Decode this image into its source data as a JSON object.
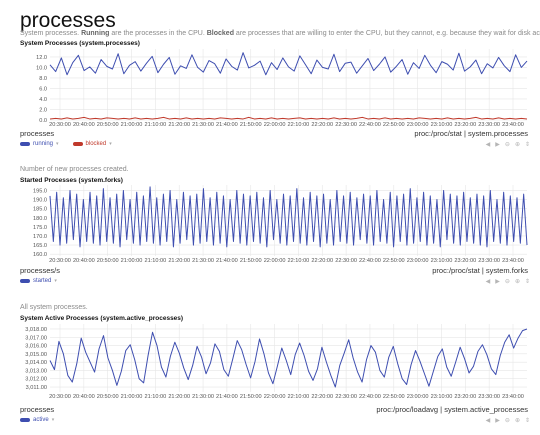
{
  "page": {
    "title": "processes"
  },
  "charts": [
    {
      "id": "processes",
      "description_parts": [
        {
          "text": "System processes. ",
          "bold": false
        },
        {
          "text": "Running",
          "bold": true
        },
        {
          "text": " are the processes in the CPU. ",
          "bold": false
        },
        {
          "text": "Blocked",
          "bold": true
        },
        {
          "text": " are processes that are willing to enter the CPU, but they cannot, e.g. because they wait for disk activity.",
          "bold": false
        }
      ],
      "title": "System Processes (system.processes)",
      "units": "processes",
      "context": "proc:/proc/stat | system.processes",
      "legend": [
        {
          "name": "running",
          "color": "#3e4eb0"
        },
        {
          "name": "blocked",
          "color": "#c0392b"
        }
      ]
    },
    {
      "id": "forks",
      "description_parts": [
        {
          "text": "Number of new processes created.",
          "bold": false
        }
      ],
      "title": "Started Processes (system.forks)",
      "units": "processes/s",
      "context": "proc:/proc/stat | system.forks",
      "legend": [
        {
          "name": "started",
          "color": "#3e4eb0"
        }
      ]
    },
    {
      "id": "active",
      "description_parts": [
        {
          "text": "All system processes.",
          "bold": false
        }
      ],
      "title": "System Active Processes (system.active_processes)",
      "units": "processes",
      "context": "proc:/proc/loadavg | system.active_processes",
      "legend": [
        {
          "name": "active",
          "color": "#3e4eb0"
        }
      ]
    }
  ],
  "controls": [
    "◀",
    "▶",
    "⊖",
    "⊕",
    "⇕"
  ],
  "chart_data": [
    {
      "type": "line",
      "title": "System Processes (system.processes)",
      "ylabel": "processes",
      "ylim": [
        0,
        13.5
      ],
      "y_ticks": [
        "12.0",
        "10.0",
        "8.0",
        "6.0",
        "4.0",
        "2.0",
        "0.0"
      ],
      "x_ticks": [
        "20:30:00",
        "20:40:00",
        "20:50:00",
        "21:00:00",
        "21:10:00",
        "21:20:00",
        "21:30:00",
        "21:40:00",
        "21:50:00",
        "22:00:00",
        "22:10:00",
        "22:20:00",
        "22:30:00",
        "22:40:00",
        "22:50:00",
        "23:00:00",
        "23:10:00",
        "23:20:00",
        "23:30:00",
        "23:40:00"
      ],
      "series": [
        {
          "name": "running",
          "values": [
            10.5,
            9.2,
            11.8,
            8.6,
            10.9,
            12.3,
            9.4,
            10.1,
            8.9,
            11.5,
            10.2,
            9.7,
            12.6,
            8.8,
            10.4,
            11.1,
            9.3,
            10.8,
            12.1,
            9.0,
            10.6,
            11.9,
            8.7,
            10.3,
            9.8,
            12.4,
            10.0,
            9.1,
            11.3,
            10.7,
            8.9,
            11.6,
            10.2,
            9.5,
            12.8,
            9.9,
            10.4,
            11.2,
            8.6,
            10.9,
            9.6,
            11.8,
            10.1,
            9.3,
            12.2,
            10.5,
            8.8,
            11.4,
            10.0,
            9.7,
            12.5,
            9.2,
            10.8,
            11.0,
            8.9,
            10.3,
            11.7,
            9.4,
            10.6,
            12.0,
            9.1,
            10.2,
            11.5,
            8.7,
            10.9,
            9.8,
            12.3,
            10.4,
            9.0,
            11.1,
            10.6,
            9.5,
            12.7,
            9.3,
            10.1,
            11.4,
            8.8,
            10.7,
            9.9,
            11.9,
            10.3,
            9.2,
            12.4,
            10.0,
            11.2
          ],
          "color": "#3e4eb0"
        },
        {
          "name": "blocked",
          "values": [
            0.2,
            0.3,
            0.2,
            0.4,
            0.2,
            0.3,
            0.5,
            0.2,
            0.3,
            0.2,
            0.4,
            0.3,
            0.2,
            0.3,
            0.2,
            0.4,
            0.2,
            0.3,
            0.2,
            0.3,
            0.5,
            0.2,
            0.3,
            0.2,
            0.4,
            0.2,
            0.3,
            0.2,
            0.3,
            0.2,
            0.4,
            0.3,
            0.2,
            0.3,
            0.2,
            0.5,
            0.2,
            0.3,
            0.2,
            0.4,
            0.2,
            0.3,
            0.2,
            0.3,
            0.4,
            0.2,
            0.3,
            0.2,
            0.3,
            0.2,
            0.4,
            0.2,
            0.3,
            0.2,
            0.3,
            0.5,
            0.2,
            0.3,
            0.2,
            0.4,
            0.2,
            0.3,
            0.2,
            0.3,
            0.2,
            0.4,
            0.3,
            0.2,
            0.3,
            0.2,
            0.4,
            0.2,
            0.3,
            0.2,
            0.3,
            0.5,
            0.2,
            0.3,
            0.2,
            0.4,
            0.2,
            0.3,
            0.2,
            0.3,
            0.2
          ],
          "color": "#c0392b"
        }
      ]
    },
    {
      "type": "line",
      "title": "Started Processes (system.forks)",
      "ylabel": "processes/s",
      "ylim": [
        159,
        198
      ],
      "y_ticks": [
        "195.0",
        "190.0",
        "185.0",
        "180.0",
        "175.0",
        "170.0",
        "165.0",
        "160.0"
      ],
      "x_ticks": [
        "20:30:00",
        "20:40:00",
        "20:50:00",
        "21:00:00",
        "21:10:00",
        "21:20:00",
        "21:30:00",
        "21:40:00",
        "21:50:00",
        "22:00:00",
        "22:10:00",
        "22:20:00",
        "22:30:00",
        "22:40:00",
        "22:50:00",
        "23:00:00",
        "23:10:00",
        "23:20:00",
        "23:30:00",
        "23:40:00"
      ],
      "series": [
        {
          "name": "started",
          "values": [
            192,
            167,
            194,
            165,
            191,
            166,
            195,
            168,
            193,
            164,
            190,
            167,
            194,
            166,
            192,
            165,
            196,
            167,
            191,
            166,
            193,
            164,
            195,
            168,
            190,
            166,
            194,
            165,
            192,
            167,
            197,
            166,
            191,
            165,
            193,
            167,
            195,
            164,
            190,
            166,
            194,
            168,
            192,
            165,
            193,
            166,
            196,
            167,
            191,
            165,
            194,
            166,
            192,
            164,
            190,
            167,
            195,
            166,
            193,
            165,
            192,
            167,
            194,
            166,
            191,
            164,
            195,
            168,
            190,
            166,
            193,
            165,
            192,
            167,
            196,
            166,
            191,
            165,
            194,
            167,
            192,
            164,
            193,
            166,
            190,
            165,
            195,
            167,
            192,
            166,
            194,
            165,
            191,
            168,
            193,
            166,
            192,
            165,
            195,
            167,
            190,
            166,
            194,
            164,
            192,
            167,
            193,
            165,
            196,
            166,
            191,
            167,
            194,
            165,
            192,
            166,
            190,
            164,
            195,
            168,
            193,
            166,
            192,
            165,
            194,
            167,
            191,
            166,
            193,
            165,
            192,
            164,
            195,
            167,
            190,
            166,
            194,
            165,
            192,
            167,
            191,
            166,
            193,
            165
          ],
          "color": "#3e4eb0"
        }
      ]
    },
    {
      "type": "line",
      "title": "System Active Processes (system.active_processes)",
      "ylabel": "processes",
      "ylim": [
        3010.4,
        3018.6
      ],
      "y_ticks": [
        "3,018.00",
        "3,017.00",
        "3,016.00",
        "3,015.00",
        "3,014.00",
        "3,013.00",
        "3,012.00",
        "3,011.00"
      ],
      "x_ticks": [
        "20:30:00",
        "20:40:00",
        "20:50:00",
        "21:00:00",
        "21:10:00",
        "21:20:00",
        "21:30:00",
        "21:40:00",
        "21:50:00",
        "22:00:00",
        "22:10:00",
        "22:20:00",
        "22:30:00",
        "22:40:00",
        "22:50:00",
        "23:00:00",
        "23:10:00",
        "23:20:00",
        "23:30:00",
        "23:40:00"
      ],
      "series": [
        {
          "name": "active",
          "values": [
            3014.2,
            3013.1,
            3016.5,
            3015.0,
            3012.4,
            3011.6,
            3013.8,
            3016.9,
            3015.2,
            3014.0,
            3012.8,
            3015.6,
            3017.2,
            3014.5,
            3013.0,
            3011.2,
            3012.9,
            3015.4,
            3016.1,
            3014.3,
            3012.0,
            3011.5,
            3014.8,
            3017.6,
            3016.0,
            3013.4,
            3012.2,
            3014.7,
            3016.4,
            3015.1,
            3013.3,
            3011.9,
            3013.6,
            3015.9,
            3014.6,
            3012.6,
            3013.9,
            3016.2,
            3015.3,
            3013.1,
            3012.3,
            3014.4,
            3016.6,
            3015.5,
            3013.7,
            3012.1,
            3014.1,
            3016.8,
            3015.0,
            3012.7,
            3011.4,
            3013.5,
            3015.7,
            3014.2,
            3012.5,
            3014.9,
            3016.3,
            3014.8,
            3012.9,
            3011.8,
            3013.2,
            3015.8,
            3014.0,
            3012.4,
            3011.0,
            3013.6,
            3015.1,
            3016.7,
            3014.5,
            3012.8,
            3011.6,
            3014.3,
            3016.0,
            3015.2,
            3013.0,
            3012.2,
            3014.6,
            3015.9,
            3013.8,
            3012.0,
            3011.3,
            3013.7,
            3015.4,
            3014.1,
            3012.6,
            3011.1,
            3012.9,
            3014.7,
            3015.6,
            3013.4,
            3012.3,
            3014.0,
            3015.8,
            3014.4,
            3012.7,
            3013.5,
            3015.3,
            3016.1,
            3014.9,
            3013.2,
            3012.5,
            3014.8,
            3016.4,
            3017.3,
            3015.7,
            3016.9,
            3017.8,
            3018.0
          ],
          "color": "#3e4eb0"
        }
      ]
    }
  ]
}
